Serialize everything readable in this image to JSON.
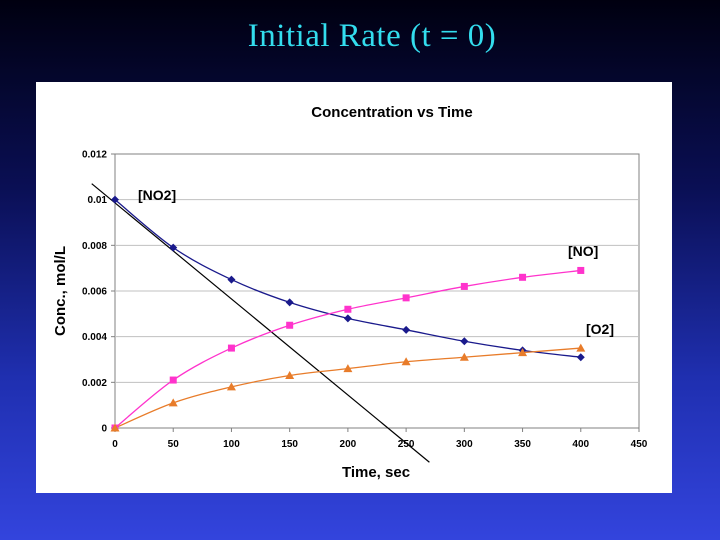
{
  "slide": {
    "title": "Initial Rate (t = 0)"
  },
  "chart_data": {
    "type": "line",
    "title": "Concentration vs Time",
    "xlabel": "Time, sec",
    "ylabel": "Conc., mol/L",
    "xlim": [
      0,
      450
    ],
    "ylim": [
      0,
      0.012
    ],
    "x_ticks": [
      "0",
      "50",
      "100",
      "150",
      "200",
      "250",
      "300",
      "350",
      "400",
      "450"
    ],
    "y_ticks": [
      "0",
      "0.002",
      "0.004",
      "0.006",
      "0.008",
      "0.01",
      "0.012"
    ],
    "x": [
      0,
      50,
      100,
      150,
      200,
      250,
      300,
      350,
      400
    ],
    "grid": "horizontal",
    "series": [
      {
        "name": "[NO2]",
        "color": "#1a1a8c",
        "marker": "diamond",
        "values": [
          0.01,
          0.0079,
          0.0065,
          0.0055,
          0.0048,
          0.0043,
          0.0038,
          0.0034,
          0.0031
        ]
      },
      {
        "name": "[NO]",
        "color": "#ff33cc",
        "marker": "square",
        "values": [
          0.0,
          0.0021,
          0.0035,
          0.0045,
          0.0052,
          0.0057,
          0.0062,
          0.0066,
          0.0069
        ]
      },
      {
        "name": "[O2]",
        "color": "#e87c2a",
        "marker": "triangle",
        "values": [
          0.0,
          0.0011,
          0.0018,
          0.0023,
          0.0026,
          0.0029,
          0.0031,
          0.0033,
          0.0035
        ]
      }
    ],
    "annotations": [
      {
        "type": "tangent-line",
        "description": "initial rate tangent",
        "points": [
          [
            -20,
            0.0107
          ],
          [
            270,
            -0.0015
          ]
        ]
      }
    ]
  }
}
